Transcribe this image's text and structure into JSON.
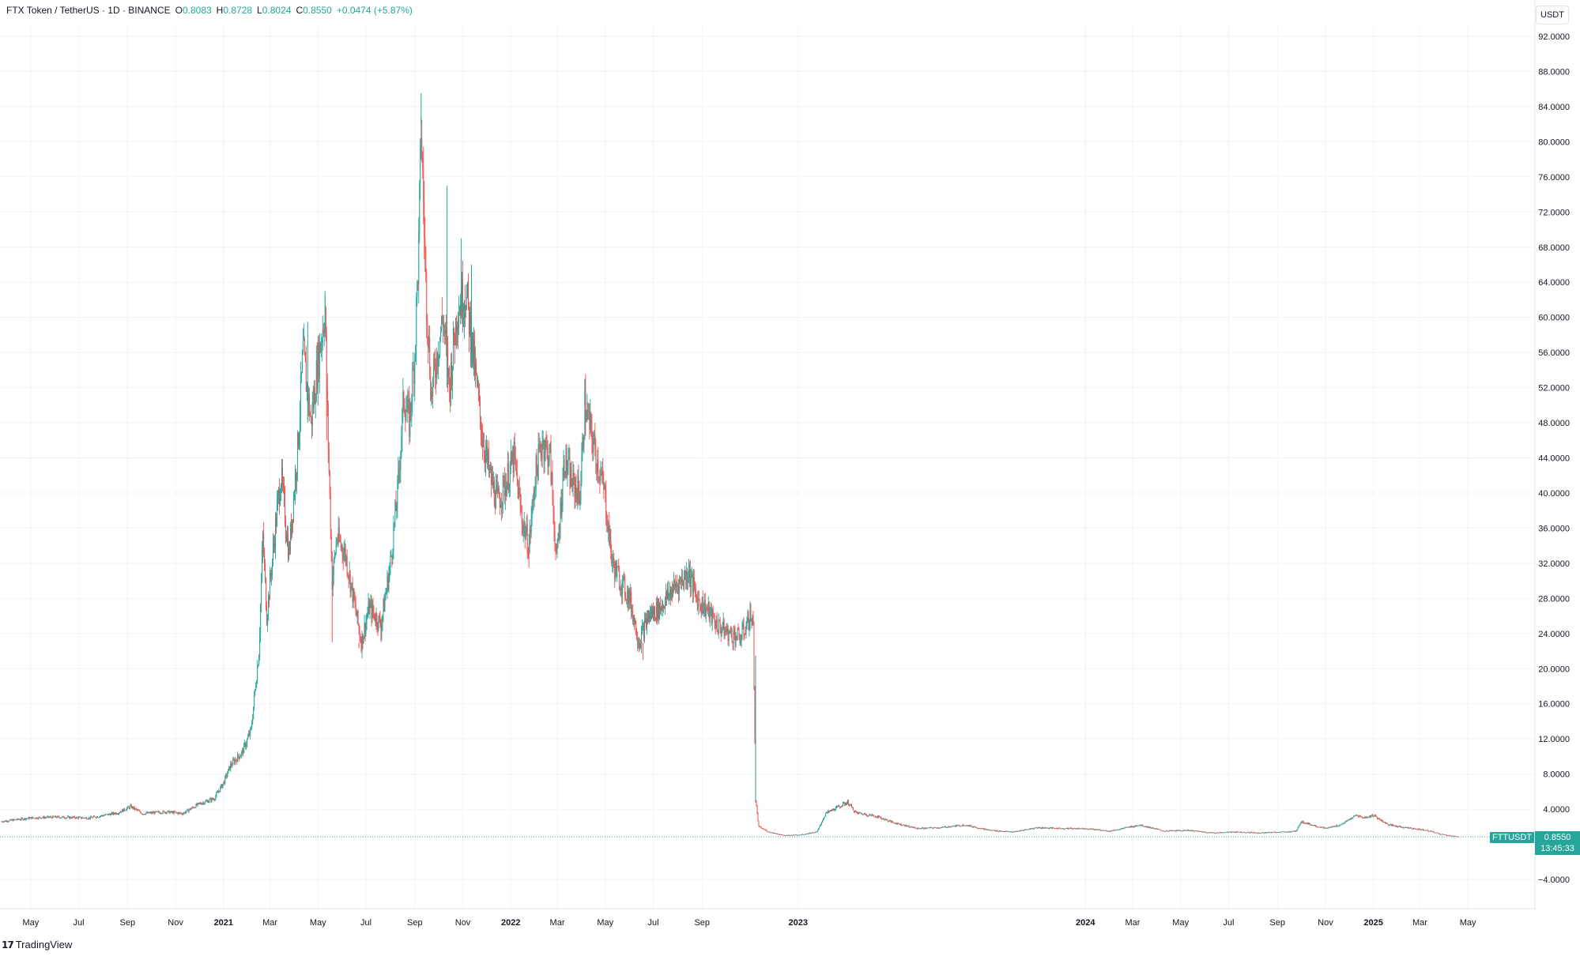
{
  "legend": {
    "symbol": "FTX Token / TetherUS · 1D · BINANCE",
    "o_label": "O",
    "o_value": "0.8083",
    "h_label": "H",
    "h_value": "0.8728",
    "l_label": "L",
    "l_value": "0.8024",
    "c_label": "C",
    "c_value": "0.8550",
    "change": "+0.0474 (+5.87%)"
  },
  "currency": "USDT",
  "price_scale_ticks": [
    "92.0000",
    "88.0000",
    "84.0000",
    "80.0000",
    "76.0000",
    "72.0000",
    "68.0000",
    "64.0000",
    "60.0000",
    "56.0000",
    "52.0000",
    "48.0000",
    "44.0000",
    "40.0000",
    "36.0000",
    "32.0000",
    "28.0000",
    "24.0000",
    "20.0000",
    "16.0000",
    "12.0000",
    "8.0000",
    "4.0000",
    "−4.0000"
  ],
  "last_price": {
    "ticker": "FTTUSDT",
    "price": "0.8550",
    "countdown": "13:45:33"
  },
  "logo": {
    "text": "TradingView"
  },
  "colors": {
    "up": "#26a69a",
    "down": "#ef5350",
    "grid": "#f0f3fa",
    "text": "#131722"
  },
  "chart_data": {
    "type": "candlestick",
    "title": "FTX Token / TetherUS · 1D · BINANCE",
    "ylabel": "USDT",
    "ylim": [
      -7.0,
      95.0
    ],
    "xlim": [
      "2020-03-25",
      "2025-06-10"
    ],
    "grid": true,
    "x_ticks": [
      {
        "date": "2020-05-01",
        "label": "May",
        "bold": false
      },
      {
        "date": "2020-07-01",
        "label": "Jul",
        "bold": false
      },
      {
        "date": "2020-09-01",
        "label": "Sep",
        "bold": false
      },
      {
        "date": "2020-11-01",
        "label": "Nov",
        "bold": false
      },
      {
        "date": "2021-01-01",
        "label": "2021",
        "bold": true
      },
      {
        "date": "2021-03-01",
        "label": "Mar",
        "bold": false
      },
      {
        "date": "2021-05-01",
        "label": "May",
        "bold": false
      },
      {
        "date": "2021-07-01",
        "label": "Jul",
        "bold": false
      },
      {
        "date": "2021-09-01",
        "label": "Sep",
        "bold": false
      },
      {
        "date": "2021-11-01",
        "label": "Nov",
        "bold": false
      },
      {
        "date": "2022-01-01",
        "label": "2022",
        "bold": true
      },
      {
        "date": "2022-03-01",
        "label": "Mar",
        "bold": false
      },
      {
        "date": "2022-05-01",
        "label": "May",
        "bold": false
      },
      {
        "date": "2022-07-01",
        "label": "Jul",
        "bold": false
      },
      {
        "date": "2022-09-01",
        "label": "Sep",
        "bold": false
      },
      {
        "date": "2023-01-01",
        "label": "2023",
        "bold": true
      },
      {
        "date": "2024-01-01",
        "label": "2024",
        "bold": true
      },
      {
        "date": "2024-03-01",
        "label": "Mar",
        "bold": false
      },
      {
        "date": "2024-05-01",
        "label": "May",
        "bold": false
      },
      {
        "date": "2024-07-01",
        "label": "Jul",
        "bold": false
      },
      {
        "date": "2024-09-01",
        "label": "Sep",
        "bold": false
      },
      {
        "date": "2024-11-01",
        "label": "Nov",
        "bold": false
      },
      {
        "date": "2025-01-01",
        "label": "2025",
        "bold": true
      },
      {
        "date": "2025-03-01",
        "label": "Mar",
        "bold": false
      },
      {
        "date": "2025-05-01",
        "label": "May",
        "bold": false
      }
    ],
    "y_ticks": [
      92,
      88,
      84,
      80,
      76,
      72,
      68,
      64,
      60,
      56,
      52,
      48,
      44,
      40,
      36,
      32,
      28,
      24,
      20,
      16,
      12,
      8,
      4,
      -4
    ],
    "series": [
      {
        "points": [
          {
            "date": "2020-03-25",
            "value": 2.6
          },
          {
            "date": "2020-05-01",
            "value": 3.0
          },
          {
            "date": "2020-06-01",
            "value": 3.1
          },
          {
            "date": "2020-07-15",
            "value": 3.0
          },
          {
            "date": "2020-08-20",
            "value": 3.6
          },
          {
            "date": "2020-09-05",
            "value": 4.3
          },
          {
            "date": "2020-09-20",
            "value": 3.5
          },
          {
            "date": "2020-10-20",
            "value": 3.7
          },
          {
            "date": "2020-11-10",
            "value": 3.5
          },
          {
            "date": "2020-12-01",
            "value": 4.6
          },
          {
            "date": "2020-12-20",
            "value": 5.2
          },
          {
            "date": "2021-01-01",
            "value": 7.0
          },
          {
            "date": "2021-01-10",
            "value": 9.0
          },
          {
            "date": "2021-01-25",
            "value": 10.5
          },
          {
            "date": "2021-02-05",
            "value": 13.0
          },
          {
            "date": "2021-02-15",
            "value": 22.0
          },
          {
            "date": "2021-02-20",
            "value": 35.0
          },
          {
            "date": "2021-02-25",
            "value": 26.0
          },
          {
            "date": "2021-03-10",
            "value": 38.0
          },
          {
            "date": "2021-03-15",
            "value": 42.0
          },
          {
            "date": "2021-03-25",
            "value": 33.0
          },
          {
            "date": "2021-04-05",
            "value": 45.0
          },
          {
            "date": "2021-04-12",
            "value": 56.0
          },
          {
            "date": "2021-04-22",
            "value": 48.0
          },
          {
            "date": "2021-05-01",
            "value": 55.0
          },
          {
            "date": "2021-05-10",
            "value": 61.0
          },
          {
            "date": "2021-05-12",
            "value": 52.0
          },
          {
            "date": "2021-05-19",
            "value": 30.0
          },
          {
            "date": "2021-05-25",
            "value": 35.0
          },
          {
            "date": "2021-06-05",
            "value": 33.0
          },
          {
            "date": "2021-06-15",
            "value": 28.0
          },
          {
            "date": "2021-06-25",
            "value": 23.0
          },
          {
            "date": "2021-07-05",
            "value": 27.0
          },
          {
            "date": "2021-07-20",
            "value": 25.0
          },
          {
            "date": "2021-08-01",
            "value": 32.0
          },
          {
            "date": "2021-08-10",
            "value": 40.0
          },
          {
            "date": "2021-08-18",
            "value": 51.0
          },
          {
            "date": "2021-08-25",
            "value": 48.0
          },
          {
            "date": "2021-09-01",
            "value": 56.0
          },
          {
            "date": "2021-09-06",
            "value": 68.0
          },
          {
            "date": "2021-09-09",
            "value": 82.0
          },
          {
            "date": "2021-09-15",
            "value": 64.0
          },
          {
            "date": "2021-09-22",
            "value": 51.0
          },
          {
            "date": "2021-10-01",
            "value": 57.0
          },
          {
            "date": "2021-10-07",
            "value": 60.0
          },
          {
            "date": "2021-10-15",
            "value": 52.0
          },
          {
            "date": "2021-10-25",
            "value": 61.0
          },
          {
            "date": "2021-11-05",
            "value": 63.0
          },
          {
            "date": "2021-11-15",
            "value": 55.0
          },
          {
            "date": "2021-11-25",
            "value": 47.0
          },
          {
            "date": "2021-12-05",
            "value": 42.0
          },
          {
            "date": "2021-12-15",
            "value": 39.0
          },
          {
            "date": "2021-12-25",
            "value": 41.0
          },
          {
            "date": "2022-01-05",
            "value": 44.0
          },
          {
            "date": "2022-01-15",
            "value": 37.0
          },
          {
            "date": "2022-01-24",
            "value": 34.0
          },
          {
            "date": "2022-02-01",
            "value": 42.0
          },
          {
            "date": "2022-02-10",
            "value": 46.0
          },
          {
            "date": "2022-02-20",
            "value": 44.0
          },
          {
            "date": "2022-02-28",
            "value": 32.0
          },
          {
            "date": "2022-03-10",
            "value": 44.0
          },
          {
            "date": "2022-03-20",
            "value": 41.0
          },
          {
            "date": "2022-03-30",
            "value": 40.0
          },
          {
            "date": "2022-04-05",
            "value": 50.0
          },
          {
            "date": "2022-04-10",
            "value": 48.0
          },
          {
            "date": "2022-04-20",
            "value": 44.0
          },
          {
            "date": "2022-04-30",
            "value": 40.0
          },
          {
            "date": "2022-05-10",
            "value": 32.0
          },
          {
            "date": "2022-05-20",
            "value": 30.0
          },
          {
            "date": "2022-06-01",
            "value": 28.0
          },
          {
            "date": "2022-06-13",
            "value": 23.0
          },
          {
            "date": "2022-06-25",
            "value": 26.0
          },
          {
            "date": "2022-07-10",
            "value": 27.0
          },
          {
            "date": "2022-07-25",
            "value": 29.0
          },
          {
            "date": "2022-08-05",
            "value": 30.0
          },
          {
            "date": "2022-08-15",
            "value": 31.0
          },
          {
            "date": "2022-08-25",
            "value": 28.0
          },
          {
            "date": "2022-09-05",
            "value": 27.0
          },
          {
            "date": "2022-09-20",
            "value": 25.0
          },
          {
            "date": "2022-10-05",
            "value": 24.0
          },
          {
            "date": "2022-10-20",
            "value": 23.5
          },
          {
            "date": "2022-11-01",
            "value": 26.0
          },
          {
            "date": "2022-11-05",
            "value": 25.0
          },
          {
            "date": "2022-11-08",
            "value": 5.0
          },
          {
            "date": "2022-11-12",
            "value": 2.0
          },
          {
            "date": "2022-11-25",
            "value": 1.4
          },
          {
            "date": "2022-12-15",
            "value": 1.0
          },
          {
            "date": "2023-01-05",
            "value": 1.1
          },
          {
            "date": "2023-01-25",
            "value": 1.4
          },
          {
            "date": "2023-02-05",
            "value": 3.5
          },
          {
            "date": "2023-02-20",
            "value": 4.2
          },
          {
            "date": "2023-03-05",
            "value": 4.8
          },
          {
            "date": "2023-03-15",
            "value": 3.6
          },
          {
            "date": "2023-04-10",
            "value": 3.2
          },
          {
            "date": "2023-05-01",
            "value": 2.5
          },
          {
            "date": "2023-06-01",
            "value": 1.8
          },
          {
            "date": "2023-07-01",
            "value": 1.9
          },
          {
            "date": "2023-08-01",
            "value": 2.2
          },
          {
            "date": "2023-09-01",
            "value": 1.6
          },
          {
            "date": "2023-10-01",
            "value": 1.4
          },
          {
            "date": "2023-11-01",
            "value": 1.9
          },
          {
            "date": "2023-12-01",
            "value": 1.8
          },
          {
            "date": "2024-01-01",
            "value": 1.8
          },
          {
            "date": "2024-02-01",
            "value": 1.5
          },
          {
            "date": "2024-03-10",
            "value": 2.2
          },
          {
            "date": "2024-04-10",
            "value": 1.5
          },
          {
            "date": "2024-05-10",
            "value": 1.6
          },
          {
            "date": "2024-06-10",
            "value": 1.3
          },
          {
            "date": "2024-07-10",
            "value": 1.4
          },
          {
            "date": "2024-08-10",
            "value": 1.3
          },
          {
            "date": "2024-09-10",
            "value": 1.4
          },
          {
            "date": "2024-09-25",
            "value": 1.5
          },
          {
            "date": "2024-10-01",
            "value": 2.6
          },
          {
            "date": "2024-10-15",
            "value": 2.2
          },
          {
            "date": "2024-11-01",
            "value": 1.8
          },
          {
            "date": "2024-11-20",
            "value": 2.2
          },
          {
            "date": "2024-12-01",
            "value": 2.8
          },
          {
            "date": "2024-12-10",
            "value": 3.3
          },
          {
            "date": "2024-12-20",
            "value": 3.0
          },
          {
            "date": "2025-01-01",
            "value": 3.3
          },
          {
            "date": "2025-01-20",
            "value": 2.2
          },
          {
            "date": "2025-02-10",
            "value": 1.9
          },
          {
            "date": "2025-03-10",
            "value": 1.6
          },
          {
            "date": "2025-03-25",
            "value": 1.2
          },
          {
            "date": "2025-04-10",
            "value": 0.95
          },
          {
            "date": "2025-04-20",
            "value": 0.855
          }
        ],
        "spikes": [
          {
            "date": "2021-04-18",
            "value": 59.5
          },
          {
            "date": "2021-05-10",
            "value": 63.0
          },
          {
            "date": "2021-05-12",
            "value": 46.0
          },
          {
            "date": "2021-05-19",
            "value": 23.0
          },
          {
            "date": "2021-06-22",
            "value": 22.3
          },
          {
            "date": "2021-07-20",
            "value": 23.0
          },
          {
            "date": "2021-09-09",
            "value": 85.5
          },
          {
            "date": "2021-09-12",
            "value": 82.0
          },
          {
            "date": "2021-10-12",
            "value": 75.0
          },
          {
            "date": "2021-10-30",
            "value": 69.0
          },
          {
            "date": "2021-11-12",
            "value": 66.0
          },
          {
            "date": "2022-01-24",
            "value": 31.5
          },
          {
            "date": "2022-04-05",
            "value": 53.0
          },
          {
            "date": "2022-06-18",
            "value": 21.0
          },
          {
            "date": "2022-08-15",
            "value": 32.5
          },
          {
            "date": "2022-11-08",
            "value": 21.5
          }
        ],
        "last": 0.855
      }
    ]
  }
}
